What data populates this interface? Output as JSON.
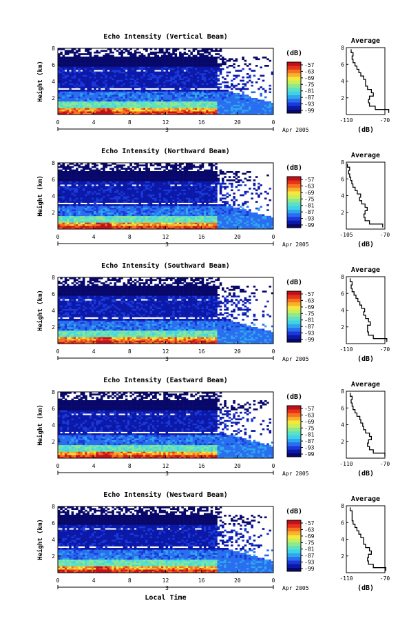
{
  "figure": {
    "xlabel": "Local Time"
  },
  "colorbar": {
    "unit": "(dB)",
    "ticks": [
      "-57",
      "-63",
      "-69",
      "-75",
      "-81",
      "-87",
      "-93",
      "-99"
    ],
    "colors": [
      "#08086b",
      "#0b18a8",
      "#1a39d8",
      "#2a6ef0",
      "#2fa7ee",
      "#3fd3e6",
      "#5fe0c4",
      "#8ee88c",
      "#c8ee5a",
      "#f6e73c",
      "#f7b22c",
      "#f5721f",
      "#e8321a",
      "#c0101a"
    ]
  },
  "chart_data": [
    {
      "type": "heatmap",
      "title": "Echo Intensity (Vertical Beam)",
      "ylabel": "Height (km)",
      "xlabel": "",
      "x_ticks": [
        "0",
        "4",
        "8",
        "12",
        "16",
        "20",
        "0"
      ],
      "x_range_hours": [
        0,
        24
      ],
      "y_ticks": [
        "8",
        "6",
        "4",
        "2"
      ],
      "ylim_km": [
        0,
        8
      ],
      "date_label": "3",
      "date_suffix": "Apr 2005",
      "clim_db": [
        -99,
        -57
      ],
      "profile": {
        "title": "Average",
        "xlabel": "(dB)",
        "x_ticks": [
          "-110",
          "-70"
        ],
        "xlim": [
          -110,
          -70
        ],
        "y_ticks": [
          "8",
          "6",
          "4",
          "2"
        ],
        "height_km": [
          0.4,
          0.8,
          1.2,
          1.6,
          2.0,
          2.4,
          2.8,
          3.2,
          3.6,
          4.0,
          4.4,
          4.8,
          5.2,
          5.6,
          6.0,
          6.4,
          6.8,
          7.2,
          7.6
        ],
        "db": [
          -66,
          -80,
          -86,
          -87,
          -86,
          -82,
          -84,
          -88,
          -90,
          -90,
          -92,
          -95,
          -97,
          -99,
          -101,
          -103,
          -104,
          -103,
          -105
        ]
      }
    },
    {
      "type": "heatmap",
      "title": "Echo Intensity (Northward Beam)",
      "ylabel": "Height (km)",
      "xlabel": "",
      "x_ticks": [
        "0",
        "4",
        "8",
        "12",
        "16",
        "20",
        "0"
      ],
      "x_range_hours": [
        0,
        24
      ],
      "y_ticks": [
        "8",
        "6",
        "4",
        "2"
      ],
      "ylim_km": [
        0,
        8
      ],
      "date_label": "3",
      "date_suffix": "Apr 2005",
      "clim_db": [
        -99,
        -57
      ],
      "profile": {
        "title": "Average",
        "xlabel": "(dB)",
        "x_ticks": [
          "-105",
          "-70"
        ],
        "xlim": [
          -105,
          -70
        ],
        "y_ticks": [
          "8",
          "6",
          "4",
          "2"
        ],
        "height_km": [
          0.4,
          0.8,
          1.2,
          1.6,
          2.0,
          2.4,
          2.8,
          3.2,
          3.6,
          4.0,
          4.4,
          4.8,
          5.2,
          5.6,
          6.0,
          6.4,
          6.8,
          7.2,
          7.6
        ],
        "db": [
          -72,
          -84,
          -88,
          -89,
          -88,
          -86,
          -88,
          -91,
          -93,
          -92,
          -95,
          -97,
          -99,
          -100,
          -101,
          -102,
          -103,
          -102,
          -104
        ]
      }
    },
    {
      "type": "heatmap",
      "title": "Echo Intensity (Southward Beam)",
      "ylabel": "Height (km)",
      "xlabel": "",
      "x_ticks": [
        "0",
        "4",
        "8",
        "12",
        "16",
        "20",
        "0"
      ],
      "x_range_hours": [
        0,
        24
      ],
      "y_ticks": [
        "8",
        "6",
        "4",
        "2"
      ],
      "ylim_km": [
        0,
        8
      ],
      "date_label": "3",
      "date_suffix": "Apr 2005",
      "clim_db": [
        -99,
        -57
      ],
      "profile": {
        "title": "Average",
        "xlabel": "(dB)",
        "x_ticks": [
          "-110",
          "-70"
        ],
        "xlim": [
          -110,
          -70
        ],
        "y_ticks": [
          "8",
          "6",
          "4",
          "2"
        ],
        "height_km": [
          0.4,
          0.8,
          1.2,
          1.6,
          2.0,
          2.4,
          2.8,
          3.2,
          3.6,
          4.0,
          4.4,
          4.8,
          5.2,
          5.6,
          6.0,
          6.4,
          6.8,
          7.2,
          7.6
        ],
        "db": [
          -68,
          -82,
          -87,
          -88,
          -88,
          -85,
          -87,
          -90,
          -92,
          -91,
          -94,
          -96,
          -98,
          -100,
          -102,
          -104,
          -105,
          -104,
          -106
        ]
      }
    },
    {
      "type": "heatmap",
      "title": "Echo Intensity (Eastward Beam)",
      "ylabel": "Height (km)",
      "xlabel": "",
      "x_ticks": [
        "0",
        "4",
        "8",
        "12",
        "16",
        "20",
        "0"
      ],
      "x_range_hours": [
        0,
        24
      ],
      "y_ticks": [
        "8",
        "6",
        "4",
        "2"
      ],
      "ylim_km": [
        0,
        8
      ],
      "date_label": "3",
      "date_suffix": "Apr 2005",
      "clim_db": [
        -99,
        -57
      ],
      "profile": {
        "title": "Average",
        "xlabel": "(dB)",
        "x_ticks": [
          "-110",
          "-70"
        ],
        "xlim": [
          -110,
          -70
        ],
        "y_ticks": [
          "8",
          "6",
          "4",
          "2"
        ],
        "height_km": [
          0.4,
          0.8,
          1.2,
          1.6,
          2.0,
          2.4,
          2.8,
          3.2,
          3.6,
          4.0,
          4.4,
          4.8,
          5.2,
          5.6,
          6.0,
          6.4,
          6.8,
          7.2,
          7.6
        ],
        "db": [
          -70,
          -82,
          -86,
          -88,
          -87,
          -84,
          -86,
          -90,
          -92,
          -93,
          -95,
          -96,
          -99,
          -101,
          -103,
          -104,
          -105,
          -104,
          -106
        ]
      }
    },
    {
      "type": "heatmap",
      "title": "Echo Intensity (Westward Beam)",
      "ylabel": "Height (km)",
      "xlabel": "Local Time",
      "x_ticks": [
        "0",
        "4",
        "8",
        "12",
        "16",
        "20",
        "0"
      ],
      "x_range_hours": [
        0,
        24
      ],
      "y_ticks": [
        "8",
        "6",
        "4",
        "2"
      ],
      "ylim_km": [
        0,
        8
      ],
      "date_label": "3",
      "date_suffix": "Apr 2005",
      "clim_db": [
        -99,
        -57
      ],
      "profile": {
        "title": "Average",
        "xlabel": "(dB)",
        "x_ticks": [
          "-110",
          "-70"
        ],
        "xlim": [
          -110,
          -70
        ],
        "y_ticks": [
          "8",
          "6",
          "4",
          "2"
        ],
        "height_km": [
          0.4,
          0.8,
          1.2,
          1.6,
          2.0,
          2.4,
          2.8,
          3.2,
          3.6,
          4.0,
          4.4,
          4.8,
          5.2,
          5.6,
          6.0,
          6.4,
          6.8,
          7.2,
          7.6
        ],
        "db": [
          -69,
          -82,
          -87,
          -88,
          -87,
          -84,
          -86,
          -90,
          -92,
          -92,
          -95,
          -97,
          -99,
          -101,
          -103,
          -104,
          -104,
          -104,
          -106
        ]
      }
    }
  ]
}
